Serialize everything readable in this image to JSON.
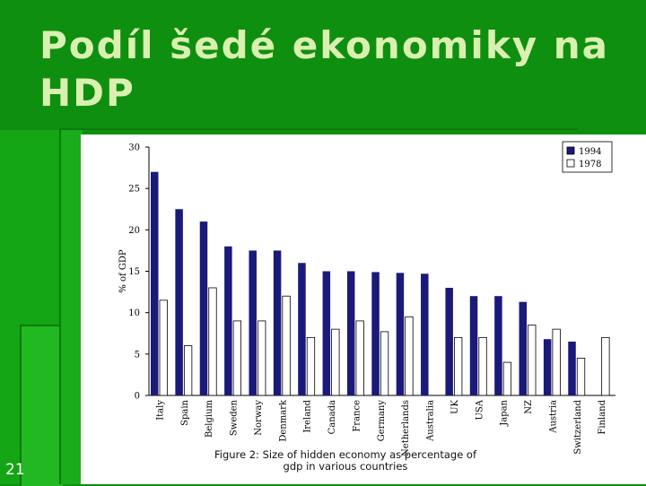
{
  "slide": {
    "title": "Podíl šedé ekonomiky na HDP",
    "number": "21",
    "caption_line1": "Figure 2: Size of hidden economy as percentage of",
    "caption_line2": "gdp in various countries"
  },
  "colors": {
    "background": "#0f8f0f",
    "title": "#d9f0b0",
    "bar_1994": "#1a1a7a",
    "bar_1978": "#ffffff"
  },
  "chart_data": {
    "type": "bar",
    "ylabel": "% of GDP",
    "xlabel": "",
    "ylim": [
      0,
      30
    ],
    "yticks": [
      0,
      5,
      10,
      15,
      20,
      25,
      30
    ],
    "grid": false,
    "legend_position": "top-right",
    "categories": [
      "Italy",
      "Spain",
      "Belgium",
      "Sweden",
      "Norway",
      "Denmark",
      "Ireland",
      "Canada",
      "France",
      "Germany",
      "Netherlands",
      "Australia",
      "UK",
      "USA",
      "Japan",
      "NZ",
      "Austria",
      "Switzerland",
      "Finland"
    ],
    "series": [
      {
        "name": "1994",
        "color": "#1a1a7a",
        "values": [
          27,
          22.5,
          21,
          18,
          17.5,
          17.5,
          16,
          15,
          15,
          14.9,
          14.8,
          14.7,
          13,
          12,
          12,
          11.3,
          6.8,
          6.5,
          null
        ]
      },
      {
        "name": "1978",
        "color": "#ffffff",
        "values": [
          11.5,
          6,
          13,
          9,
          9,
          12,
          7,
          8,
          9,
          7.7,
          9.5,
          null,
          7,
          7,
          4,
          8.5,
          8,
          4.5,
          7
        ]
      }
    ]
  }
}
